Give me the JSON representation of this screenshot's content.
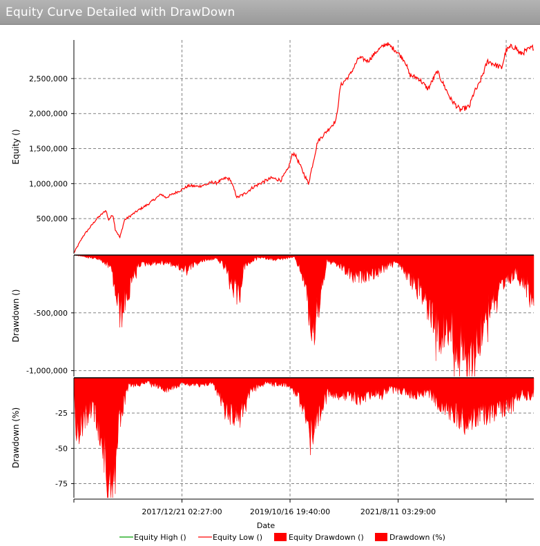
{
  "window": {
    "title": "Equity Curve Detailed with DrawDown"
  },
  "colors": {
    "equity_low": "#ff0000",
    "equity_high": "#00a000",
    "drawdown_fill": "#ff0000",
    "grid": "#808080",
    "title_bar": "#a8a8a8"
  },
  "chart_data": {
    "type": "area",
    "xlabel": "Date",
    "x_tick_labels": [
      "2017/12/21 02:27:00",
      "2019/10/16 19:40:00",
      "2021/8/11 03:29:00"
    ],
    "x_range": [
      "2015/12",
      "2023/8"
    ],
    "grid": true,
    "legend_position": "bottom",
    "legend": [
      {
        "label": "Equity High ()",
        "type": "line",
        "color": "#00a000"
      },
      {
        "label": "Equity Low ()",
        "type": "line",
        "color": "#ff0000"
      },
      {
        "label": "Equity Drawdown ()",
        "type": "area",
        "color": "#ff0000"
      },
      {
        "label": "Drawdown (%)",
        "type": "area",
        "color": "#ff0000"
      }
    ],
    "panels": [
      {
        "name": "equity",
        "ylabel": "Equity ()",
        "ylim": [
          0,
          3050000
        ],
        "y_ticks": [
          500000,
          1000000,
          1500000,
          2000000,
          2500000
        ],
        "y_tick_labels": [
          "500,000",
          "1,000,000",
          "1,500,000",
          "2,000,000",
          "2,500,000"
        ],
        "series": [
          {
            "name": "Equity Low ()",
            "x": [
              0,
              0.02,
              0.05,
              0.07,
              0.075,
              0.085,
              0.09,
              0.1,
              0.11,
              0.14,
              0.16,
              0.19,
              0.2,
              0.23,
              0.25,
              0.27,
              0.29,
              0.3,
              0.31,
              0.33,
              0.34,
              0.355,
              0.37,
              0.39,
              0.41,
              0.43,
              0.45,
              0.465,
              0.47,
              0.475,
              0.48,
              0.51,
              0.53,
              0.55,
              0.57,
              0.58,
              0.6,
              0.62,
              0.64,
              0.66,
              0.68,
              0.7,
              0.72,
              0.73,
              0.75,
              0.77,
              0.79,
              0.82,
              0.84,
              0.86,
              0.87,
              0.88,
              0.9,
              0.93,
              0.94,
              0.95,
              0.96,
              0.97,
              1.0
            ],
            "y": [
              10000,
              250000,
              500000,
              620000,
              480000,
              560000,
              350000,
              230000,
              480000,
              620000,
              700000,
              850000,
              800000,
              900000,
              970000,
              960000,
              990000,
              1020000,
              1010000,
              1080000,
              1060000,
              800000,
              850000,
              950000,
              1020000,
              1080000,
              1050000,
              1200000,
              1300000,
              1420000,
              1430000,
              1000000,
              1600000,
              1750000,
              1900000,
              2400000,
              2550000,
              2800000,
              2750000,
              2900000,
              3000000,
              2900000,
              2750000,
              2550000,
              2500000,
              2350000,
              2600000,
              2200000,
              2050000,
              2100000,
              2300000,
              2400000,
              2750000,
              2650000,
              2900000,
              2950000,
              2950000,
              2850000,
              2950000
            ]
          }
        ]
      },
      {
        "name": "drawdown_value",
        "ylabel": "Drawdown ()",
        "ylim": [
          -1050000,
          0
        ],
        "y_ticks": [
          -500000,
          -1000000
        ],
        "y_tick_labels": [
          "-500,000",
          "-1,000,000"
        ],
        "series": [
          {
            "name": "Equity Drawdown ()",
            "x": [
              0,
              0.05,
              0.08,
              0.09,
              0.1,
              0.12,
              0.14,
              0.2,
              0.24,
              0.28,
              0.31,
              0.33,
              0.34,
              0.35,
              0.36,
              0.37,
              0.4,
              0.44,
              0.48,
              0.5,
              0.52,
              0.55,
              0.58,
              0.61,
              0.66,
              0.7,
              0.76,
              0.78,
              0.8,
              0.82,
              0.84,
              0.86,
              0.9,
              0.93,
              0.96,
              1.0
            ],
            "y": [
              0,
              -30000,
              -100000,
              -300000,
              -520000,
              -300000,
              -80000,
              -60000,
              -120000,
              -50000,
              -30000,
              -100000,
              -250000,
              -300000,
              -350000,
              -100000,
              -20000,
              -40000,
              -20000,
              -200000,
              -700000,
              -50000,
              -100000,
              -200000,
              -150000,
              -50000,
              -350000,
              -500000,
              -700000,
              -620000,
              -850000,
              -1000000,
              -450000,
              -300000,
              -150000,
              -350000
            ]
          }
        ]
      },
      {
        "name": "drawdown_pct",
        "ylabel": "Drawdown (%)",
        "ylim": [
          -85,
          0
        ],
        "y_ticks": [
          -25,
          -50,
          -75
        ],
        "y_tick_labels": [
          "-25",
          "-50",
          "-75"
        ],
        "series": [
          {
            "name": "Drawdown (%)",
            "x": [
              0,
              0.005,
              0.02,
              0.04,
              0.06,
              0.075,
              0.09,
              0.1,
              0.12,
              0.14,
              0.16,
              0.2,
              0.24,
              0.28,
              0.3,
              0.32,
              0.34,
              0.36,
              0.38,
              0.42,
              0.45,
              0.47,
              0.5,
              0.52,
              0.55,
              0.58,
              0.62,
              0.66,
              0.7,
              0.74,
              0.77,
              0.8,
              0.85,
              0.9,
              0.94,
              0.97,
              1.0
            ],
            "y": [
              0,
              -40,
              -30,
              -20,
              -40,
              -75,
              -65,
              -30,
              -5,
              -5,
              -3,
              -8,
              -4,
              -6,
              -3,
              -15,
              -25,
              -28,
              -10,
              -3,
              -5,
              -5,
              -20,
              -45,
              -10,
              -12,
              -15,
              -10,
              -8,
              -12,
              -10,
              -20,
              -30,
              -25,
              -20,
              -12,
              -12
            ]
          }
        ]
      }
    ]
  }
}
